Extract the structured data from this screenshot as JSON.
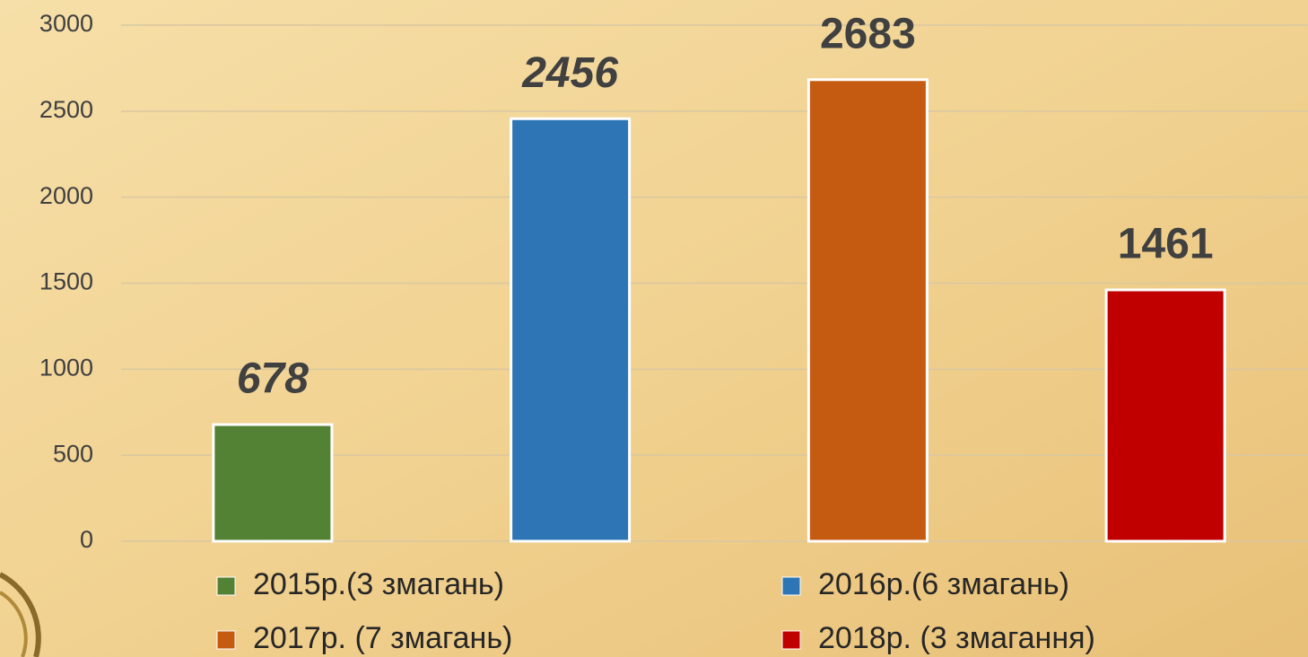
{
  "chart_data": {
    "type": "bar",
    "series": [
      {
        "name": "2015р.(3 змагань)",
        "color": "#548235",
        "values": [
          678
        ],
        "italic": true
      },
      {
        "name": "2016р.(6 змагань)",
        "color": "#2e75b6",
        "values": [
          2456
        ],
        "italic": true
      },
      {
        "name": "2017р. (7 змагань)",
        "color": "#c55a11",
        "values": [
          2683
        ],
        "italic": false
      },
      {
        "name": "2018р. (3 змагання)",
        "color": "#c00000",
        "values": [
          1461
        ],
        "italic": false
      }
    ],
    "ylim": [
      0,
      3000
    ],
    "yticks": [
      0,
      500,
      1000,
      1500,
      2000,
      2500,
      3000
    ],
    "grid": true,
    "legend": "bottom"
  }
}
